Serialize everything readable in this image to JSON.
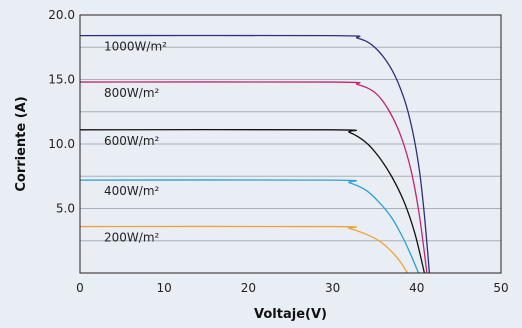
{
  "chart_data": {
    "type": "line",
    "xlabel": "Voltaje(V)",
    "ylabel": "Corriente (A)",
    "xlim": [
      0,
      50
    ],
    "ylim": [
      0,
      20
    ],
    "x_ticks": [
      "0",
      "10",
      "20",
      "30",
      "40",
      "50"
    ],
    "y_ticks": [
      "5.0",
      "10.0",
      "15.0",
      "20.0"
    ],
    "grid": "horizontal",
    "series": [
      {
        "name": "1000W/m²",
        "color": "#2e2f7a",
        "isc": 18.4,
        "voc": 41.5,
        "points": [
          [
            0,
            18.4
          ],
          [
            30,
            18.4
          ],
          [
            33,
            18.2
          ],
          [
            35,
            17.5
          ],
          [
            37,
            15.8
          ],
          [
            38.5,
            13.5
          ],
          [
            39.5,
            11.0
          ],
          [
            40.3,
            8.0
          ],
          [
            40.9,
            4.5
          ],
          [
            41.5,
            0
          ]
        ]
      },
      {
        "name": "800W/m²",
        "color": "#c2256e",
        "isc": 14.8,
        "voc": 41.2,
        "points": [
          [
            0,
            14.8
          ],
          [
            30,
            14.8
          ],
          [
            33,
            14.6
          ],
          [
            35,
            14.0
          ],
          [
            36.5,
            12.8
          ],
          [
            38,
            10.8
          ],
          [
            39.3,
            8.0
          ],
          [
            40.3,
            4.5
          ],
          [
            41.2,
            0
          ]
        ]
      },
      {
        "name": "600W/m²",
        "color": "#111111",
        "isc": 11.1,
        "voc": 40.9,
        "points": [
          [
            0,
            11.1
          ],
          [
            30,
            11.1
          ],
          [
            32,
            10.9
          ],
          [
            34,
            10.1
          ],
          [
            35.5,
            9.0
          ],
          [
            37,
            7.5
          ],
          [
            38.5,
            5.5
          ],
          [
            39.8,
            3.0
          ],
          [
            40.9,
            0
          ]
        ]
      },
      {
        "name": "400W/m²",
        "color": "#2b9fd2",
        "isc": 7.2,
        "voc": 40.2,
        "points": [
          [
            0,
            7.2
          ],
          [
            30,
            7.2
          ],
          [
            32,
            7.0
          ],
          [
            34,
            6.4
          ],
          [
            35.5,
            5.5
          ],
          [
            37,
            4.3
          ],
          [
            38.3,
            2.8
          ],
          [
            39.3,
            1.4
          ],
          [
            40.2,
            0
          ]
        ]
      },
      {
        "name": "200W/m²",
        "color": "#f0a13a",
        "isc": 3.6,
        "voc": 38.9,
        "points": [
          [
            0,
            3.6
          ],
          [
            30,
            3.6
          ],
          [
            32,
            3.45
          ],
          [
            34,
            3.0
          ],
          [
            35.5,
            2.5
          ],
          [
            36.8,
            1.8
          ],
          [
            38,
            0.9
          ],
          [
            38.9,
            0
          ]
        ]
      }
    ]
  }
}
